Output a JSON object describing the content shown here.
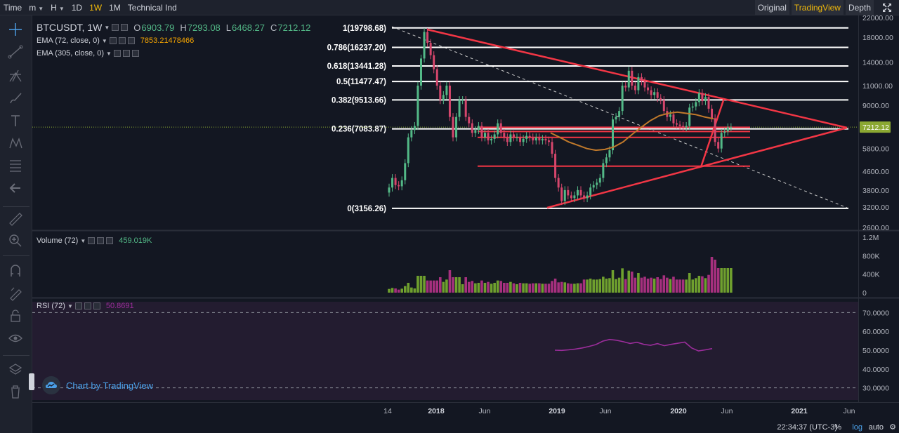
{
  "toolbar": {
    "items": [
      {
        "label": "Time",
        "active": false,
        "caret": false
      },
      {
        "label": "m",
        "active": false,
        "caret": true
      },
      {
        "label": "H",
        "active": false,
        "caret": true
      },
      {
        "label": "1D",
        "active": false,
        "caret": false
      },
      {
        "label": "1W",
        "active": true,
        "caret": false
      },
      {
        "label": "1M",
        "active": false,
        "caret": false
      },
      {
        "label": "Technical Ind",
        "active": false,
        "caret": false
      }
    ],
    "views": [
      {
        "label": "Original",
        "active": false
      },
      {
        "label": "TradingView",
        "active": true
      },
      {
        "label": "Depth",
        "active": false
      }
    ]
  },
  "legend": {
    "symbol": "BTCUSDT, 1W",
    "ohlc": [
      {
        "key": "O",
        "value": "6903.79"
      },
      {
        "key": "H",
        "value": "7293.08"
      },
      {
        "key": "L",
        "value": "6468.27"
      },
      {
        "key": "C",
        "value": "7212.12"
      }
    ],
    "ema1_label": "EMA (72, close, 0)",
    "ema1_value": "7853.21478466",
    "ema2_label": "EMA (305, close, 0)",
    "volume_label": "Volume (72)",
    "volume_value": "459.019K",
    "rsi_label": "RSI (72)",
    "rsi_value": "50.8691"
  },
  "branding": "Chart by TradingView",
  "bottom": {
    "time": "22:34:37 (UTC-3)",
    "percent": "%",
    "log": "log",
    "auto": "auto"
  },
  "colors": {
    "bg": "#131722",
    "up": "#53b987",
    "down": "#d6466c",
    "fib": "#ffffff",
    "triangle": "#f23645",
    "ema": "#c0792b",
    "rsi": "#9b2d9b",
    "rsi_bg": "#231c30",
    "vol_up": "#6fa02e",
    "vol_down": "#a6307e"
  },
  "chart_data": {
    "type": "candlestick",
    "price_scale": "log",
    "price_ticks": [
      22000,
      18000,
      14000,
      11000,
      9000,
      7212.12,
      5800,
      4600,
      3800,
      3200,
      2600
    ],
    "price_tick_labels": [
      "22000.00",
      "18000.00",
      "14000.00",
      "11000.00",
      "9000.00",
      "7212.12",
      "5800.00",
      "4600.00",
      "3800.00",
      "3200.00",
      "2600.00"
    ],
    "current_price": 7212.12,
    "x_axis_labels": [
      "14",
      "2018",
      "Jun",
      "2019",
      "Jun",
      "2020",
      "Jun",
      "2021",
      "Jun"
    ],
    "fib_levels": [
      {
        "label": "1(19798.68)",
        "ratio": 1,
        "price": 19798.68
      },
      {
        "label": "0.786(16237.20)",
        "ratio": 0.786,
        "price": 16237.2
      },
      {
        "label": "0.618(13441.28)",
        "ratio": 0.618,
        "price": 13441.28
      },
      {
        "label": "0.5(11477.47)",
        "ratio": 0.5,
        "price": 11477.47
      },
      {
        "label": "0.382(9513.66)",
        "ratio": 0.382,
        "price": 9513.66
      },
      {
        "label": "0.236(7083.87)",
        "ratio": 0.236,
        "price": 7083.87
      },
      {
        "label": "0(3156.26)",
        "ratio": 0,
        "price": 3156.26
      }
    ],
    "support_lines": [
      6900,
      6500,
      4850
    ],
    "weekly_close": [
      3900,
      4300,
      4000,
      3950,
      4200,
      5000,
      6500,
      7000,
      7300,
      11000,
      14500,
      19000,
      17000,
      15000,
      13000,
      11000,
      9500,
      10000,
      11000,
      8000,
      6500,
      8000,
      9500,
      9500,
      8000,
      7500,
      6800,
      7000,
      7300,
      6500,
      6800,
      6300,
      6400,
      6700,
      7500,
      6800,
      6500,
      6200,
      6700,
      6500,
      6500,
      6200,
      6400,
      6600,
      6500,
      6300,
      6500,
      6300,
      6400,
      6300,
      6200,
      5500,
      4300,
      3900,
      3400,
      3800,
      3600,
      3500,
      3600,
      3800,
      3600,
      3500,
      3600,
      3900,
      4000,
      4100,
      4300,
      5000,
      5300,
      5700,
      7800,
      8000,
      8500,
      11000,
      10800,
      12800,
      11000,
      10500,
      12000,
      11500,
      10800,
      10500,
      10000,
      10300,
      9700,
      9500,
      8500,
      8000,
      8200,
      7500,
      7400,
      7300,
      7200,
      7300,
      8800,
      8900,
      9300,
      10200,
      9400,
      9800,
      8700,
      7900,
      6200,
      5800,
      6800,
      6900,
      7200,
      7212
    ],
    "ema72": [
      6800,
      6500,
      6200,
      6000,
      5800,
      5700,
      5750,
      5900,
      6200,
      6700,
      7200,
      7700,
      8100,
      8300,
      8400,
      8300,
      8200,
      8000,
      7850
    ],
    "volume_scale_ticks": [
      "1.2M",
      "800K",
      "400K",
      "0"
    ],
    "volume_value": 459019,
    "rsi_scale_ticks": [
      "70.0000",
      "60.0000",
      "50.0000",
      "40.0000",
      "30.0000"
    ],
    "rsi_bands": [
      70,
      30
    ],
    "rsi": [
      50.0,
      49.9,
      50.2,
      50.6,
      51.2,
      52.0,
      53.0,
      54.8,
      55.7,
      55.3,
      54.5,
      53.6,
      54.2,
      53.1,
      52.6,
      53.5,
      52.4,
      53.1,
      53.7,
      54.3,
      51.2,
      49.6,
      50.2,
      50.87
    ]
  }
}
